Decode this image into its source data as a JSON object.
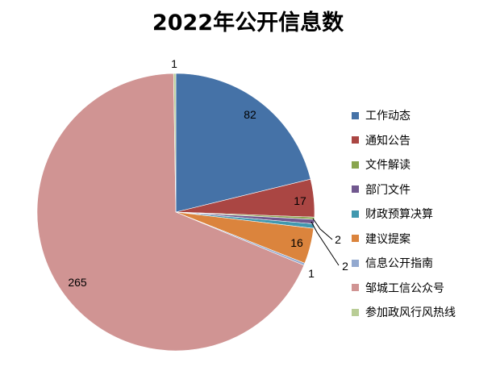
{
  "chart_data": {
    "type": "pie",
    "title": "2022年公开信息数",
    "legend_position": "right",
    "slices": [
      {
        "label": "工作动态",
        "value": 82,
        "color": "#4572A7"
      },
      {
        "label": "通知公告",
        "value": 17,
        "color": "#AA4643"
      },
      {
        "label": "文件解读",
        "value": 1,
        "color": "#89A54E"
      },
      {
        "label": "部门文件",
        "value": 2,
        "color": "#71588F"
      },
      {
        "label": "财政预算决算",
        "value": 2,
        "color": "#4198AF"
      },
      {
        "label": "建议提案",
        "value": 16,
        "color": "#DB843D"
      },
      {
        "label": "信息公开指南",
        "value": 1,
        "color": "#93A9CF"
      },
      {
        "label": "邹城工信公众号",
        "value": 265,
        "color": "#D09493"
      },
      {
        "label": "参加政风行风热线",
        "value": 1,
        "color": "#B9CD96"
      }
    ]
  }
}
